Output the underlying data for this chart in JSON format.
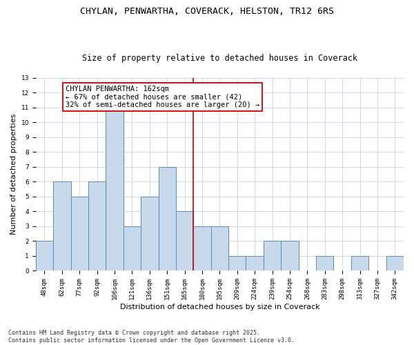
{
  "title_line1": "CHYLAN, PENWARTHA, COVERACK, HELSTON, TR12 6RS",
  "title_line2": "Size of property relative to detached houses in Coverack",
  "xlabel": "Distribution of detached houses by size in Coverack",
  "ylabel": "Number of detached properties",
  "categories": [
    "48sqm",
    "62sqm",
    "77sqm",
    "92sqm",
    "106sqm",
    "121sqm",
    "136sqm",
    "151sqm",
    "165sqm",
    "180sqm",
    "195sqm",
    "209sqm",
    "224sqm",
    "239sqm",
    "254sqm",
    "268sqm",
    "283sqm",
    "298sqm",
    "313sqm",
    "327sqm",
    "342sqm"
  ],
  "values": [
    2,
    6,
    5,
    6,
    11,
    3,
    5,
    7,
    4,
    3,
    3,
    1,
    1,
    2,
    2,
    0,
    1,
    0,
    1,
    0,
    1
  ],
  "bar_color": "#c9d9ec",
  "bar_edge_color": "#5b8db8",
  "bar_linewidth": 0.7,
  "property_line_x": 8.5,
  "annotation_text": "CHYLAN PENWARTHA: 162sqm\n← 67% of detached houses are smaller (42)\n32% of semi-detached houses are larger (20) →",
  "annotation_box_color": "#ffffff",
  "annotation_box_edge_color": "#cc0000",
  "vline_color": "#cc0000",
  "vline_linewidth": 1.2,
  "ylim": [
    0,
    13
  ],
  "yticks": [
    0,
    1,
    2,
    3,
    4,
    5,
    6,
    7,
    8,
    9,
    10,
    11,
    12,
    13
  ],
  "grid_color": "#d0d8e8",
  "background_color": "#ffffff",
  "footnote": "Contains HM Land Registry data © Crown copyright and database right 2025.\nContains public sector information licensed under the Open Government Licence v3.0.",
  "title_fontsize": 9.5,
  "subtitle_fontsize": 8.5,
  "axis_label_fontsize": 8,
  "tick_fontsize": 6.5,
  "annotation_fontsize": 7.5,
  "footnote_fontsize": 6
}
